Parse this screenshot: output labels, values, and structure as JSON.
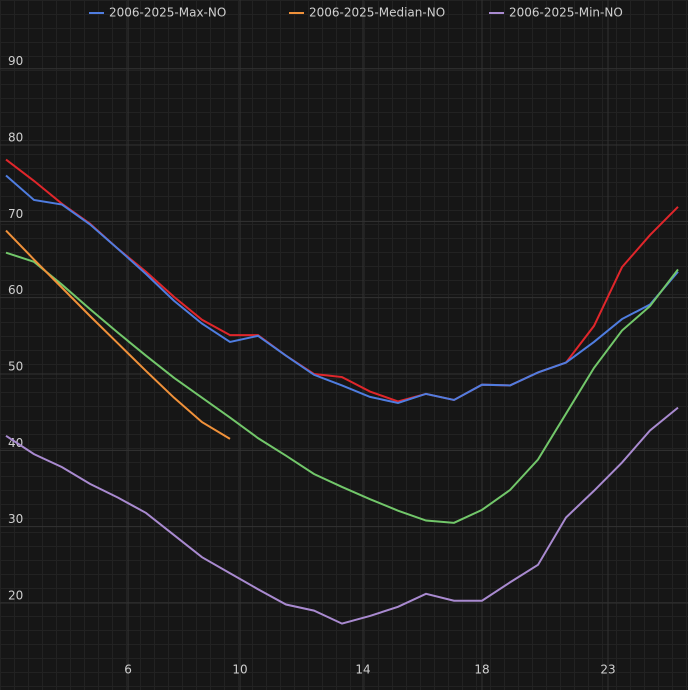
{
  "chart_data": {
    "type": "line",
    "x": [
      0,
      1,
      2,
      3,
      4,
      5,
      6,
      7,
      8,
      9,
      10,
      11,
      12,
      13,
      14,
      15,
      16,
      17,
      18,
      19,
      20,
      21,
      22,
      23,
      24
    ],
    "xlim": [
      -0.214,
      24.357
    ],
    "xticks": [
      {
        "value": 4.36,
        "label": "6"
      },
      {
        "value": 8.36,
        "label": "10"
      },
      {
        "value": 12.75,
        "label": "14"
      },
      {
        "value": 17,
        "label": "18"
      },
      {
        "value": 21.5,
        "label": "23"
      }
    ],
    "ylim": [
      8.6,
      99
    ],
    "yticks": [
      20,
      30,
      40,
      50,
      60,
      70,
      80,
      90
    ],
    "grid": true,
    "series": [
      {
        "color": "#e0262b",
        "values": [
          78.1,
          75.3,
          72.3,
          69.7,
          66.4,
          63.4,
          60.1,
          57.1,
          55.1,
          55.1,
          52.4,
          50.0,
          49.6,
          47.7,
          46.4,
          47.4,
          46.6,
          48.6,
          48.5,
          50.2,
          51.5,
          56.3,
          64.0,
          68.2,
          71.9
        ]
      },
      {
        "name": "2006-2025-Max-NO",
        "color": "#4f7de0",
        "values": [
          76.0,
          72.8,
          72.2,
          69.6,
          66.4,
          63.1,
          59.6,
          56.6,
          54.2,
          55.0,
          52.4,
          49.9,
          48.5,
          47.0,
          46.2,
          47.4,
          46.6,
          48.6,
          48.5,
          50.2,
          51.5,
          54.2,
          57.2,
          59.1,
          63.4
        ]
      },
      {
        "color": "#72c76a",
        "values": [
          65.9,
          64.7,
          61.7,
          58.5,
          55.4,
          52.4,
          49.5,
          46.9,
          44.3,
          41.6,
          39.3,
          36.9,
          35.2,
          33.6,
          32.1,
          30.8,
          30.5,
          32.2,
          34.8,
          38.8,
          44.8,
          50.8,
          55.7,
          58.9,
          63.7
        ]
      },
      {
        "name": "2006-2025-Median-NO",
        "color": "#f0913a",
        "values": [
          68.8,
          65.0,
          61.3,
          57.6,
          54.0,
          50.4,
          46.9,
          43.7,
          41.5,
          null,
          null,
          null,
          null,
          null,
          null,
          null,
          null,
          null,
          null,
          null,
          null,
          null,
          null,
          null,
          null
        ]
      },
      {
        "name": "2006-2025-Min-NO",
        "color": "#a98ad0",
        "values": [
          41.9,
          39.5,
          37.8,
          35.6,
          33.8,
          31.8,
          28.9,
          26.0,
          23.9,
          21.8,
          19.8,
          19.0,
          17.3,
          18.3,
          19.5,
          21.2,
          20.3,
          20.3,
          22.7,
          25.0,
          31.2,
          34.7,
          38.4,
          42.6,
          45.6
        ]
      }
    ]
  }
}
